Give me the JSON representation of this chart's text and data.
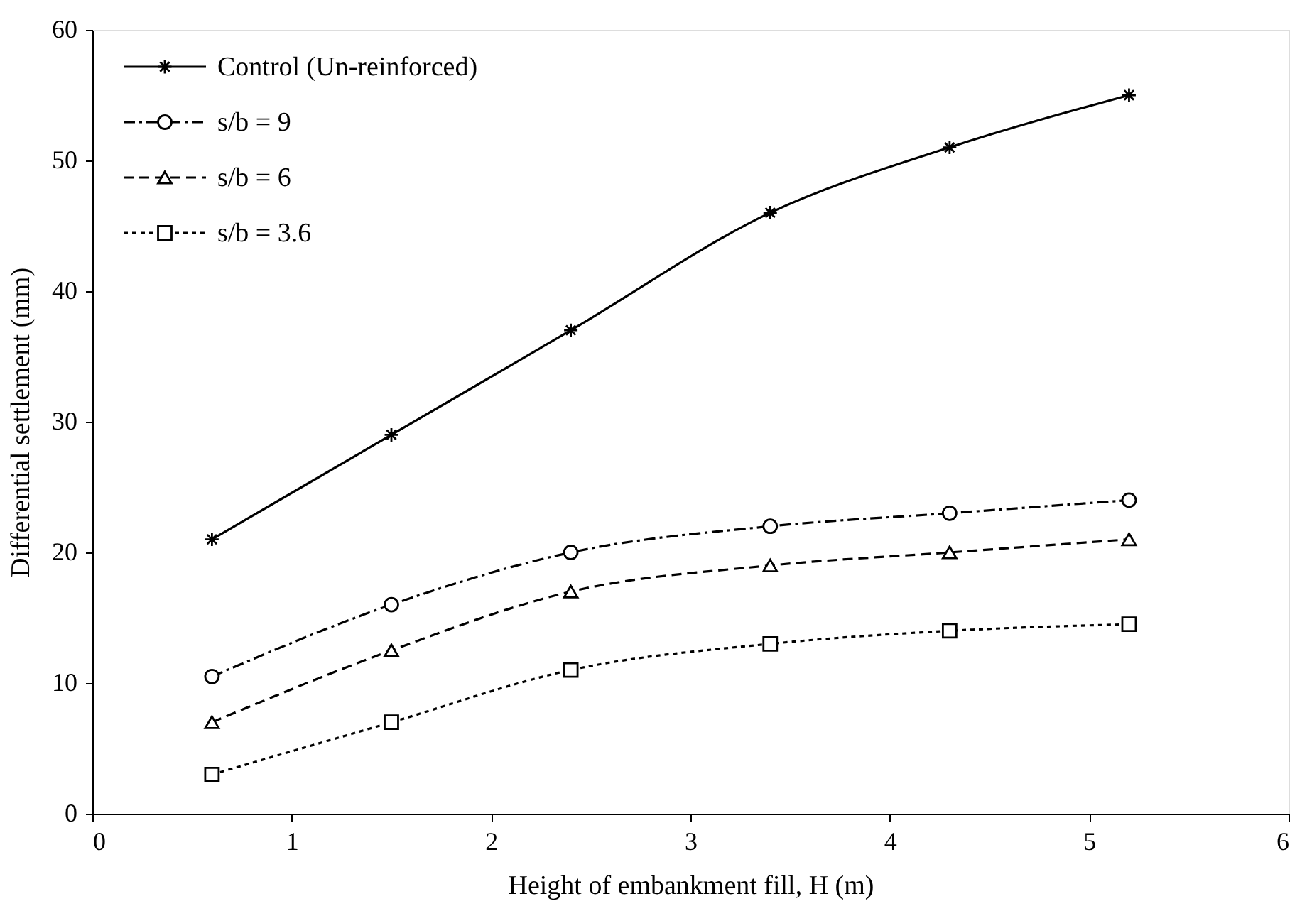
{
  "chart_data": {
    "type": "line",
    "xlabel": "Height of embankment fill, H (m)",
    "ylabel": "Differential settlement (mm)",
    "x": [
      0.6,
      1.5,
      2.4,
      3.4,
      4.3,
      5.2
    ],
    "series": [
      {
        "name": "Control (Un-reinforced)",
        "color": "#000000",
        "marker": "cross",
        "line_style": "solid",
        "values": [
          21,
          29,
          37,
          46,
          51,
          55
        ]
      },
      {
        "name": "s/b = 9",
        "color": "#000000",
        "marker": "circle",
        "line_style": "dashdot",
        "values": [
          10.5,
          16,
          20,
          22,
          23,
          24
        ]
      },
      {
        "name": "s/b = 6",
        "color": "#000000",
        "marker": "triangle",
        "line_style": "dashed",
        "values": [
          7,
          12.5,
          17,
          19,
          20,
          21
        ]
      },
      {
        "name": "s/b = 3.6",
        "color": "#000000",
        "marker": "square",
        "line_style": "dotted",
        "values": [
          3,
          7,
          11,
          13,
          14,
          14.5
        ]
      }
    ],
    "xlim": [
      0,
      6
    ],
    "xticks": [
      0,
      1,
      2,
      3,
      4,
      5,
      6
    ],
    "ylim": [
      0,
      60
    ],
    "yticks": [
      0,
      10,
      20,
      30,
      40,
      50,
      60
    ],
    "grid": false,
    "legend": "top left"
  }
}
